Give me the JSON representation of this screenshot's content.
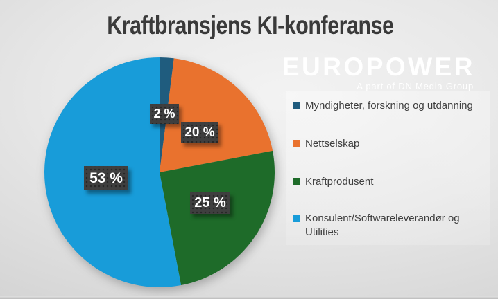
{
  "slide": {
    "title": "Kraftbransjens KI-konferanse"
  },
  "branding": {
    "logo_text": "EUROPOWER",
    "logo_subtitle": "A part of DN Media Group"
  },
  "chart_data": {
    "type": "pie",
    "title": "Kraftbransjens KI-konferanse",
    "legend_position": "right",
    "start_angle_deg": 0,
    "direction": "clockwise",
    "slices": [
      {
        "label": "Myndigheter, forskning og utdanning",
        "value": 2,
        "display": "2 %",
        "color": "#1F5C7E"
      },
      {
        "label": "Nettselskap",
        "value": 20,
        "display": "20 %",
        "color": "#E9722E"
      },
      {
        "label": "Kraftprodusent",
        "value": 25,
        "display": "25 %",
        "color": "#1E6B29"
      },
      {
        "label": "Konsulent/Softwareleverandør og Utilities",
        "value": 53,
        "display": "53 %",
        "color": "#189CD9"
      }
    ]
  },
  "colors": {
    "background_light": "#F3F3F3",
    "background_dark": "#C2C2C2",
    "title_text": "#3A3A3A",
    "legend_text": "#3F3F3F",
    "label_box_bg": "#3F3F3F",
    "label_text": "#FFFFFF",
    "logo_text": "#FFFFFF"
  }
}
